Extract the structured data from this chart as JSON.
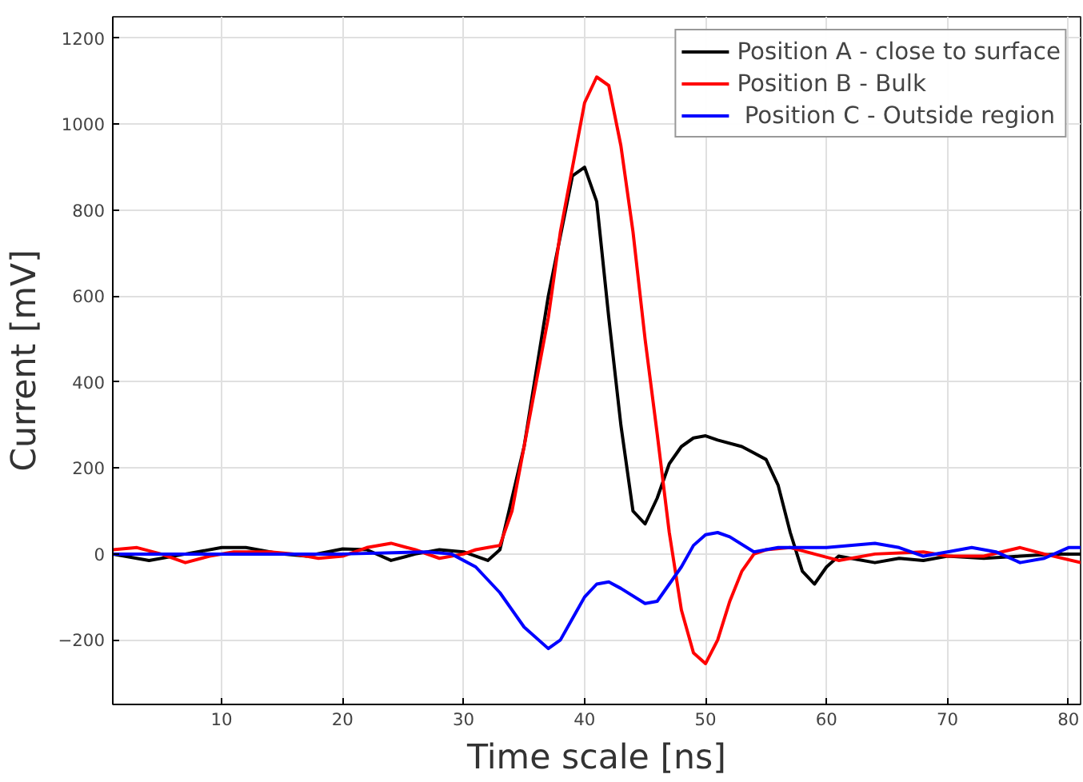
{
  "chart_data": {
    "type": "line",
    "xlabel": "Time scale [ns]",
    "ylabel": "Current [mV]",
    "xlim": [
      1,
      81
    ],
    "ylim": [
      -350,
      1250
    ],
    "xticks": [
      10,
      20,
      30,
      40,
      50,
      60,
      70,
      80
    ],
    "yticks": [
      -200,
      0,
      200,
      400,
      600,
      800,
      1000,
      1200
    ],
    "grid": true,
    "legend": "top right",
    "line_style": "solid",
    "series": [
      {
        "name": "Position A - close to surface",
        "color": "#000000",
        "x": [
          1,
          4,
          7,
          10,
          12,
          15,
          17,
          20,
          22,
          24,
          26,
          28,
          30,
          32,
          33,
          35,
          37,
          39,
          40,
          41,
          42,
          43,
          44,
          45,
          46,
          47,
          48,
          49,
          50,
          51,
          53,
          54,
          55,
          56,
          57,
          58,
          59,
          60,
          61,
          62,
          64,
          66,
          68,
          70,
          73,
          76,
          79,
          81
        ],
        "values": [
          0,
          -15,
          0,
          15,
          15,
          0,
          -5,
          12,
          10,
          -15,
          0,
          10,
          5,
          -15,
          10,
          250,
          600,
          880,
          900,
          820,
          550,
          300,
          100,
          70,
          130,
          210,
          250,
          270,
          275,
          265,
          250,
          235,
          220,
          160,
          50,
          -40,
          -70,
          -30,
          -5,
          -10,
          -20,
          -10,
          -15,
          -5,
          -10,
          -5,
          0,
          0
        ]
      },
      {
        "name": "Position B - Bulk",
        "color": "#ff0000",
        "x": [
          1,
          3,
          5,
          7,
          9,
          11,
          14,
          16,
          18,
          20,
          22,
          24,
          26,
          28,
          30,
          31,
          32,
          33,
          34,
          35,
          37,
          38,
          39,
          40,
          41,
          42,
          43,
          44,
          45,
          46,
          47,
          48,
          49,
          50,
          51,
          52,
          53,
          54,
          55,
          57,
          59,
          61,
          64,
          68,
          70,
          73,
          76,
          78,
          81
        ],
        "values": [
          10,
          15,
          0,
          -20,
          -5,
          5,
          5,
          0,
          -10,
          -5,
          15,
          25,
          10,
          -10,
          0,
          10,
          15,
          20,
          100,
          250,
          550,
          750,
          900,
          1050,
          1110,
          1090,
          950,
          750,
          500,
          280,
          50,
          -130,
          -230,
          -255,
          -200,
          -110,
          -40,
          0,
          10,
          15,
          0,
          -15,
          0,
          5,
          -5,
          -5,
          15,
          0,
          -20
        ]
      },
      {
        "name": " Position C - Outside region",
        "color": "#0000ff",
        "x": [
          1,
          10,
          20,
          27,
          29,
          31,
          33,
          35,
          37,
          38,
          39,
          40,
          41,
          42,
          43,
          45,
          46,
          48,
          49,
          50,
          51,
          52,
          54,
          56,
          60,
          64,
          66,
          68,
          70,
          72,
          74,
          76,
          78,
          80,
          81
        ],
        "values": [
          0,
          0,
          0,
          5,
          0,
          -30,
          -90,
          -170,
          -220,
          -200,
          -150,
          -100,
          -70,
          -65,
          -80,
          -115,
          -110,
          -30,
          20,
          45,
          50,
          40,
          5,
          15,
          15,
          25,
          15,
          -5,
          5,
          15,
          5,
          -20,
          -10,
          15,
          15
        ]
      }
    ]
  }
}
